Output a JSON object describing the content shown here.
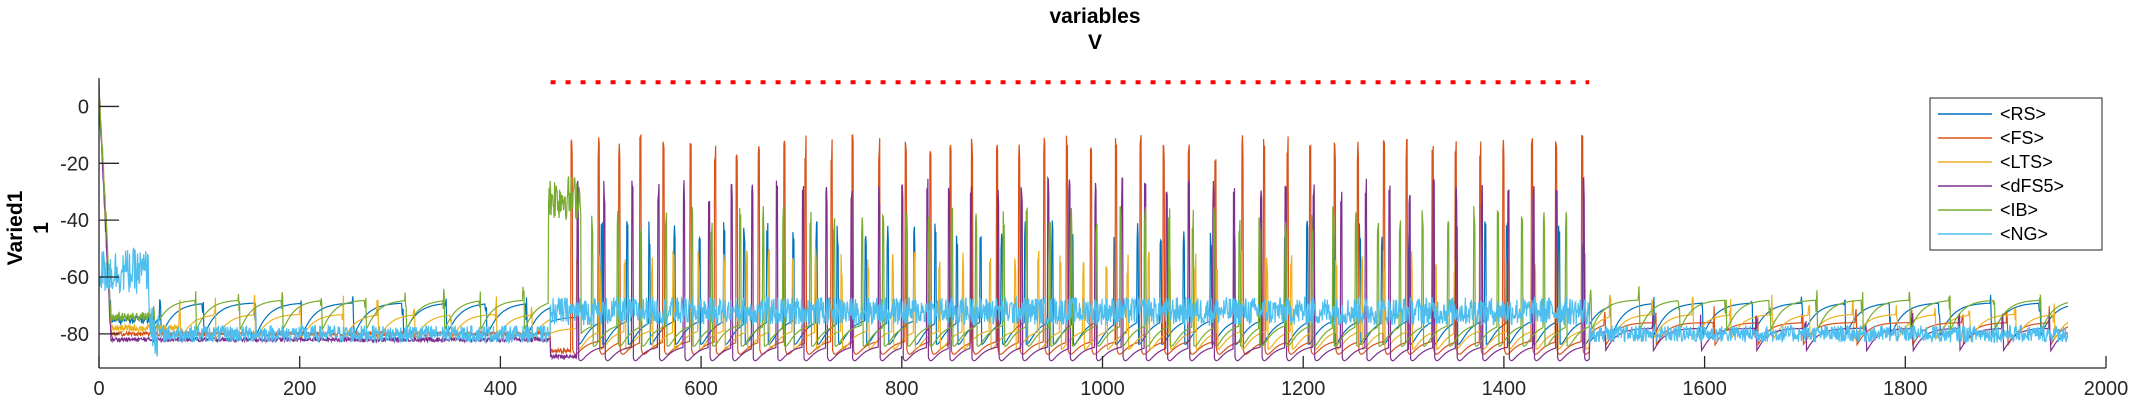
{
  "chart_data": {
    "type": "line",
    "title": [
      "variables",
      "V"
    ],
    "ylabel": [
      "Varied1",
      "1"
    ],
    "xlabel": "",
    "xlim": [
      0,
      2000
    ],
    "ylim": [
      -92,
      10
    ],
    "xticks": [
      0,
      200,
      400,
      600,
      800,
      1000,
      1200,
      1400,
      1600,
      1800,
      2000
    ],
    "yticks": [
      0,
      -20,
      -40,
      -60,
      -80
    ],
    "legend_position": "top-right",
    "stim_marker": {
      "color": "#ff0000",
      "start": 450,
      "end": 1485,
      "y": 8.5
    },
    "series": [
      {
        "name": "<RS>",
        "color": "#0072BD"
      },
      {
        "name": "<FS>",
        "color": "#D95319"
      },
      {
        "name": "<LTS>",
        "color": "#EDB120"
      },
      {
        "name": "<dFS5>",
        "color": "#7E2F8E"
      },
      {
        "name": "<IB>",
        "color": "#77AC30"
      },
      {
        "name": "<NG>",
        "color": "#4DBEEE"
      }
    ]
  }
}
